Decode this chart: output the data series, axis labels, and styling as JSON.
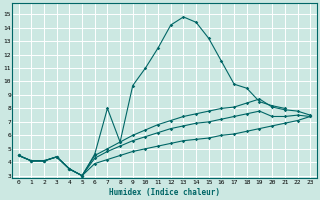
{
  "xlabel": "Humidex (Indice chaleur)",
  "background_color": "#cce8e2",
  "line_color": "#006666",
  "grid_color": "#ffffff",
  "xlim": [
    -0.5,
    23.5
  ],
  "ylim": [
    2.8,
    15.8
  ],
  "xticks": [
    0,
    1,
    2,
    3,
    4,
    5,
    6,
    7,
    8,
    9,
    10,
    11,
    12,
    13,
    14,
    15,
    16,
    17,
    18,
    19,
    20,
    21,
    22,
    23
  ],
  "yticks": [
    3,
    4,
    5,
    6,
    7,
    8,
    9,
    10,
    11,
    12,
    13,
    14,
    15
  ],
  "series1_x": [
    0,
    1,
    2,
    3,
    4,
    5,
    6,
    7,
    8,
    9,
    10,
    11,
    12,
    13,
    14,
    15,
    16,
    17,
    18,
    19,
    20,
    21
  ],
  "series1_y": [
    4.5,
    4.1,
    4.1,
    4.4,
    3.5,
    3.0,
    4.6,
    8.0,
    5.5,
    9.7,
    11.0,
    12.5,
    14.2,
    14.8,
    14.4,
    13.2,
    11.5,
    9.8,
    9.5,
    8.5,
    8.2,
    8.0
  ],
  "series2_x": [
    0,
    1,
    2,
    3,
    4,
    5,
    6,
    7,
    8,
    9,
    10,
    11,
    12,
    13,
    14,
    15,
    16,
    17,
    18,
    19,
    20,
    21,
    22,
    23
  ],
  "series2_y": [
    4.5,
    4.1,
    4.1,
    4.4,
    3.5,
    3.0,
    4.5,
    5.0,
    5.5,
    6.0,
    6.4,
    6.8,
    7.1,
    7.4,
    7.6,
    7.8,
    8.0,
    8.1,
    8.4,
    8.7,
    8.1,
    7.9,
    7.8,
    7.5
  ],
  "series3_x": [
    0,
    1,
    2,
    3,
    4,
    5,
    6,
    7,
    8,
    9,
    10,
    11,
    12,
    13,
    14,
    15,
    16,
    17,
    18,
    19,
    20,
    21,
    22,
    23
  ],
  "series3_y": [
    4.5,
    4.1,
    4.1,
    4.4,
    3.5,
    3.0,
    4.3,
    4.8,
    5.2,
    5.6,
    5.9,
    6.2,
    6.5,
    6.7,
    6.9,
    7.0,
    7.2,
    7.4,
    7.6,
    7.8,
    7.4,
    7.4,
    7.5,
    7.4
  ],
  "series4_x": [
    0,
    1,
    2,
    3,
    4,
    5,
    6,
    7,
    8,
    9,
    10,
    11,
    12,
    13,
    14,
    15,
    16,
    17,
    18,
    19,
    20,
    21,
    22,
    23
  ],
  "series4_y": [
    4.5,
    4.1,
    4.1,
    4.4,
    3.5,
    3.0,
    3.9,
    4.2,
    4.5,
    4.8,
    5.0,
    5.2,
    5.4,
    5.6,
    5.7,
    5.8,
    6.0,
    6.1,
    6.3,
    6.5,
    6.7,
    6.9,
    7.1,
    7.4
  ]
}
